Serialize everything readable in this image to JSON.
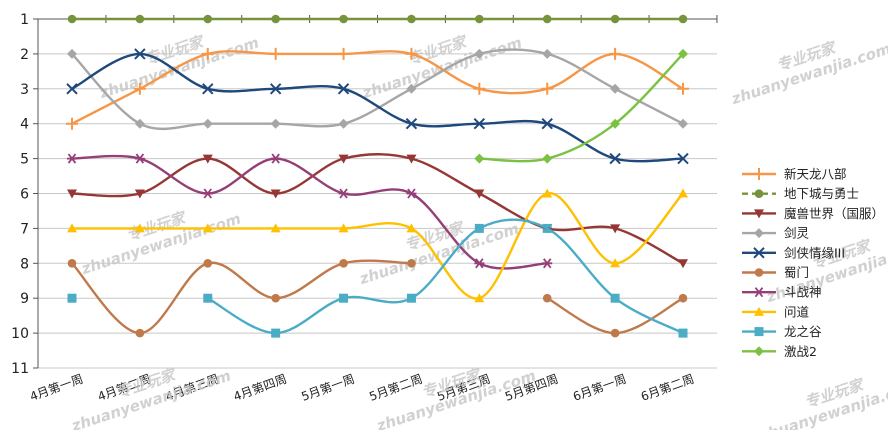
{
  "chart_data": {
    "type": "line",
    "title": "",
    "xlabel": "",
    "ylabel": "",
    "y_axis": {
      "reversed": true,
      "ylim": [
        1,
        11
      ],
      "ticks": [
        1,
        2,
        3,
        4,
        5,
        6,
        7,
        8,
        9,
        10,
        11
      ]
    },
    "grid": true,
    "legend_position": "right",
    "x": [
      "4月第一周",
      "4月第二周",
      "4月第三周",
      "4月第四周",
      "5月第一周",
      "5月第二周",
      "5月第三周",
      "5月第四周",
      "6月第一周",
      "6月第二周"
    ],
    "series": [
      {
        "name": "新天龙八部",
        "color": "#f79646",
        "marker": "plus",
        "values": [
          4,
          3,
          2,
          2,
          2,
          2,
          3,
          3,
          2,
          3
        ]
      },
      {
        "name": "地下城与勇士",
        "color": "#77933c",
        "marker": "circle",
        "values": [
          1,
          1,
          1,
          1,
          1,
          1,
          1,
          1,
          1,
          1
        ]
      },
      {
        "name": "魔兽世界（国服）",
        "color": "#953735",
        "marker": "triangle-down",
        "values": [
          6,
          6,
          5,
          6,
          5,
          5,
          6,
          7,
          7,
          8
        ]
      },
      {
        "name": "剑灵",
        "color": "#a6a6a6",
        "marker": "diamond",
        "values": [
          2,
          4,
          4,
          4,
          4,
          3,
          2,
          2,
          3,
          4
        ]
      },
      {
        "name": "剑侠情缘III",
        "color": "#1f497d",
        "marker": "x",
        "values": [
          3,
          2,
          3,
          3,
          3,
          4,
          4,
          4,
          5,
          5
        ]
      },
      {
        "name": "蜀门",
        "color": "#c0794a",
        "marker": "circle",
        "values": [
          8,
          10,
          8,
          9,
          8,
          8,
          null,
          9,
          10,
          9
        ]
      },
      {
        "name": "斗战神",
        "color": "#943f77",
        "marker": "star",
        "values": [
          5,
          5,
          6,
          5,
          6,
          6,
          8,
          8,
          null,
          null
        ]
      },
      {
        "name": "问道",
        "color": "#ffc000",
        "marker": "triangle",
        "values": [
          7,
          7,
          7,
          7,
          7,
          7,
          9,
          6,
          8,
          6
        ]
      },
      {
        "name": "龙之谷",
        "color": "#4bacc6",
        "marker": "square",
        "values": [
          9,
          null,
          9,
          10,
          9,
          9,
          7,
          7,
          9,
          10
        ]
      },
      {
        "name": "激战2",
        "color": "#7bc142",
        "marker": "diamond",
        "values": [
          null,
          null,
          null,
          null,
          null,
          null,
          5,
          5,
          4,
          2
        ]
      }
    ]
  },
  "watermark": {
    "line1": "专业玩家",
    "line2": "zhuanyewanjia.com"
  }
}
